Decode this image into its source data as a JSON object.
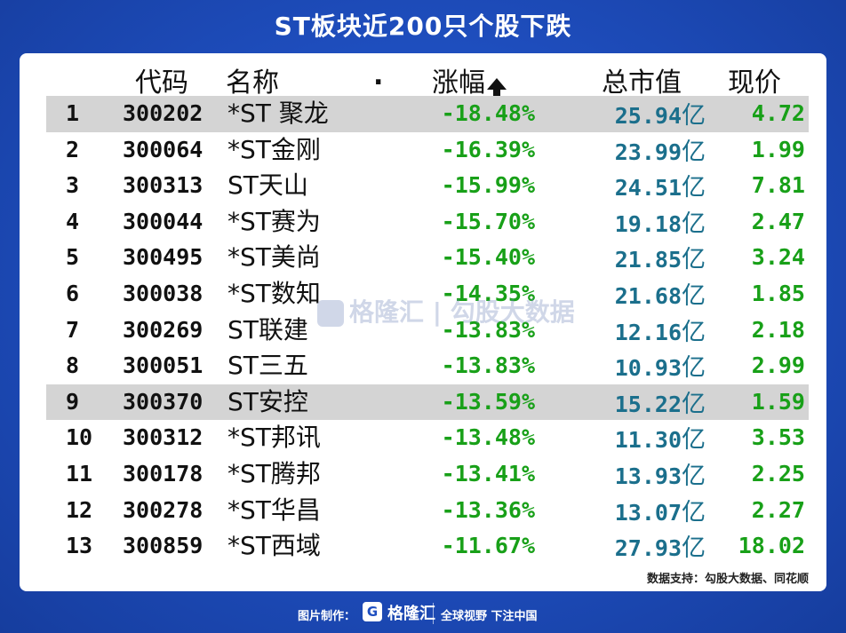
{
  "title": "ST板块近200只个股下跌",
  "header": {
    "code": "代码",
    "name": "名称",
    "dot": ".",
    "change": "涨幅",
    "mcap": "总市值",
    "price": "现价"
  },
  "rows": [
    {
      "rank": "1",
      "code": "300202",
      "name": "*ST 聚龙",
      "change": "-18.48%",
      "mcap": "25.94",
      "price": "4.72",
      "highlight": true
    },
    {
      "rank": "2",
      "code": "300064",
      "name": "*ST金刚",
      "change": "-16.39%",
      "mcap": "23.99",
      "price": "1.99",
      "highlight": false
    },
    {
      "rank": "3",
      "code": "300313",
      "name": "ST天山",
      "change": "-15.99%",
      "mcap": "24.51",
      "price": "7.81",
      "highlight": false
    },
    {
      "rank": "4",
      "code": "300044",
      "name": "*ST赛为",
      "change": "-15.70%",
      "mcap": "19.18",
      "price": "2.47",
      "highlight": false
    },
    {
      "rank": "5",
      "code": "300495",
      "name": "*ST美尚",
      "change": "-15.40%",
      "mcap": "21.85",
      "price": "3.24",
      "highlight": false
    },
    {
      "rank": "6",
      "code": "300038",
      "name": "*ST数知",
      "change": "-14.35%",
      "mcap": "21.68",
      "price": "1.85",
      "highlight": false
    },
    {
      "rank": "7",
      "code": "300269",
      "name": "ST联建",
      "change": "-13.83%",
      "mcap": "12.16",
      "price": "2.18",
      "highlight": false
    },
    {
      "rank": "8",
      "code": "300051",
      "name": "ST三五",
      "change": "-13.83%",
      "mcap": "10.93",
      "price": "2.99",
      "highlight": false
    },
    {
      "rank": "9",
      "code": "300370",
      "name": "ST安控",
      "change": "-13.59%",
      "mcap": "15.22",
      "price": "1.59",
      "highlight": true
    },
    {
      "rank": "10",
      "code": "300312",
      "name": "*ST邦讯",
      "change": "-13.48%",
      "mcap": "11.30",
      "price": "3.53",
      "highlight": false
    },
    {
      "rank": "11",
      "code": "300178",
      "name": "*ST腾邦",
      "change": "-13.41%",
      "mcap": "13.93",
      "price": "2.25",
      "highlight": false
    },
    {
      "rank": "12",
      "code": "300278",
      "name": "*ST华昌",
      "change": "-13.36%",
      "mcap": "13.07",
      "price": "2.27",
      "highlight": false
    },
    {
      "rank": "13",
      "code": "300859",
      "name": "*ST西域",
      "change": "-11.67%",
      "mcap": "27.93",
      "price": "18.02",
      "highlight": false
    }
  ],
  "mcap_unit": "亿",
  "watermark": "格隆汇 | 勾股大数据",
  "source": "数据支持：勾股大数据、同花顺",
  "footer": {
    "credit": "图片制作：",
    "logo_glyph": "G",
    "brand": "格隆汇",
    "slogan": "全球视野 下注中国"
  },
  "colors": {
    "background": "#1f4fc0",
    "change_green": "#18a018",
    "mcap_teal": "#1b6f8c",
    "highlight_row": "#d4d4d4"
  },
  "icons": {
    "sort": "arrow-up-icon"
  }
}
